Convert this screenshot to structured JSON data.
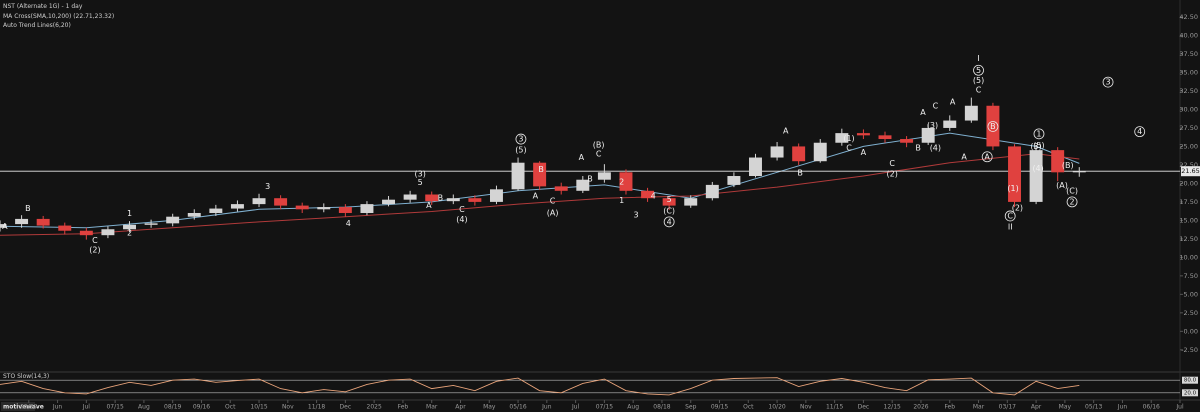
{
  "chart_data": {
    "type": "candlestick",
    "title": "NST (Alternate 1G) - 1 day",
    "indicators": [
      "MA Cross(SMA,10,200) (22.71,23.32)",
      "Auto Trend Lines(6,20)"
    ],
    "watermark": "motivewave",
    "up_color": "#d4d4d4",
    "down_color": "#e0413f",
    "x": [
      -1,
      -0.25,
      0.5,
      1.25,
      2,
      2.75,
      3.5,
      4.25,
      5,
      5.75,
      6.5,
      7.25,
      8,
      8.75,
      9.5,
      10.25,
      11,
      11.75,
      12.5,
      13.25,
      14,
      14.75,
      15.5,
      16.25,
      17,
      17.75,
      18.5,
      19.25,
      20,
      20.75,
      21.5,
      22.25,
      23,
      23.75,
      24.5,
      25.25,
      26,
      26.75,
      27.5,
      28.25,
      29,
      29.75,
      30.5,
      31.25,
      32,
      32.75,
      33.5,
      34.25,
      35,
      35.75,
      36.5
    ],
    "open": [
      14.0,
      14.5,
      15.2,
      14.3,
      13.6,
      13.0,
      13.8,
      14.4,
      14.6,
      15.5,
      16.0,
      16.6,
      17.2,
      18.0,
      17.0,
      16.5,
      16.8,
      16.0,
      17.2,
      17.8,
      18.5,
      17.6,
      18.0,
      17.5,
      19.2,
      22.8,
      19.6,
      19.0,
      20.5,
      21.5,
      19.0,
      18.0,
      17.0,
      18.0,
      19.8,
      21.0,
      23.5,
      25.0,
      23.0,
      25.5,
      26.8,
      26.5,
      26.0,
      25.5,
      27.5,
      28.5,
      30.5,
      25.0,
      17.5,
      24.5,
      21.5
    ],
    "high": [
      15.0,
      15.7,
      15.6,
      14.7,
      14.0,
      14.2,
      14.9,
      15.1,
      15.9,
      16.5,
      17.1,
      17.7,
      18.6,
      18.4,
      17.4,
      17.3,
      17.2,
      17.6,
      18.3,
      19.0,
      18.9,
      18.5,
      18.4,
      19.7,
      23.5,
      23.0,
      20.1,
      21.0,
      22.6,
      21.9,
      19.4,
      18.3,
      18.4,
      20.2,
      21.5,
      24.0,
      25.6,
      25.4,
      26.0,
      27.4,
      27.3,
      27.0,
      26.4,
      28.0,
      29.2,
      31.6,
      30.9,
      25.3,
      25.2,
      24.9,
      22.2
    ],
    "low": [
      13.5,
      14.0,
      13.9,
      13.1,
      12.4,
      12.6,
      13.4,
      14.0,
      14.2,
      15.1,
      15.6,
      16.2,
      16.8,
      16.5,
      16.0,
      16.1,
      15.5,
      15.7,
      16.9,
      17.4,
      17.1,
      17.2,
      17.0,
      17.2,
      19.0,
      19.1,
      18.5,
      18.7,
      20.1,
      18.5,
      17.5,
      16.4,
      16.7,
      17.7,
      19.5,
      20.8,
      23.1,
      22.5,
      22.8,
      25.1,
      26.0,
      25.5,
      24.9,
      25.2,
      27.1,
      28.2,
      24.5,
      16.8,
      17.2,
      20.3,
      20.9
    ],
    "close": [
      14.5,
      15.2,
      14.3,
      13.6,
      13.0,
      13.8,
      14.4,
      14.6,
      15.5,
      16.0,
      16.6,
      17.2,
      18.0,
      17.0,
      16.5,
      16.8,
      16.0,
      17.2,
      17.8,
      18.5,
      17.6,
      18.0,
      17.5,
      19.2,
      22.8,
      19.6,
      19.0,
      20.5,
      21.5,
      19.0,
      18.0,
      17.0,
      18.0,
      19.8,
      21.0,
      23.5,
      25.0,
      23.0,
      25.5,
      26.8,
      26.5,
      26.0,
      25.5,
      27.5,
      28.5,
      30.5,
      25.0,
      17.5,
      24.5,
      21.5,
      21.65
    ],
    "ma_lines": [
      {
        "color": "#7fb0d0",
        "x": [
          -1,
          2,
          5,
          8,
          11,
          14,
          17,
          20,
          23,
          26,
          29,
          32,
          35,
          36.5
        ],
        "values": [
          14.2,
          14.0,
          15.0,
          16.5,
          16.8,
          17.5,
          19.0,
          19.8,
          18.0,
          21.5,
          25.0,
          26.8,
          25.0,
          22.7
        ]
      },
      {
        "color": "#b03a3a",
        "x": [
          -1,
          2,
          5,
          8,
          11,
          14,
          17,
          20,
          23,
          26,
          29,
          32,
          35,
          36.5
        ],
        "values": [
          13.0,
          13.2,
          14.0,
          14.8,
          15.5,
          16.2,
          17.2,
          18.0,
          18.3,
          19.5,
          21.0,
          22.8,
          24.0,
          23.3
        ]
      }
    ],
    "last_price": 21.65,
    "xlim": [
      -1,
      40
    ],
    "xticks": [
      {
        "value": 0,
        "label": "05/20"
      },
      {
        "value": 1,
        "label": "Jun"
      },
      {
        "value": 2,
        "label": "Jul"
      },
      {
        "value": 3,
        "label": "07/15"
      },
      {
        "value": 4,
        "label": "Aug"
      },
      {
        "value": 5,
        "label": "08/19"
      },
      {
        "value": 6,
        "label": "09/16"
      },
      {
        "value": 7,
        "label": "Oct"
      },
      {
        "value": 8,
        "label": "10/15"
      },
      {
        "value": 9,
        "label": "Nov"
      },
      {
        "value": 10,
        "label": "11/18"
      },
      {
        "value": 11,
        "label": "Dec"
      },
      {
        "value": 12,
        "label": "2025"
      },
      {
        "value": 13,
        "label": "Feb"
      },
      {
        "value": 14,
        "label": "Mar"
      },
      {
        "value": 15,
        "label": "Apr"
      },
      {
        "value": 16,
        "label": "May"
      },
      {
        "value": 17,
        "label": "05/16"
      },
      {
        "value": 18,
        "label": "Jun"
      },
      {
        "value": 19,
        "label": "Jul"
      },
      {
        "value": 20,
        "label": "07/15"
      },
      {
        "value": 21,
        "label": "Aug"
      },
      {
        "value": 22,
        "label": "08/18"
      },
      {
        "value": 23,
        "label": "Sep"
      },
      {
        "value": 24,
        "label": "09/15"
      },
      {
        "value": 25,
        "label": "Oct"
      },
      {
        "value": 26,
        "label": "10/20"
      },
      {
        "value": 27,
        "label": "Nov"
      },
      {
        "value": 28,
        "label": "11/15"
      },
      {
        "value": 29,
        "label": "Dec"
      },
      {
        "value": 30,
        "label": "12/15"
      },
      {
        "value": 31,
        "label": "2026"
      },
      {
        "value": 32,
        "label": "Feb"
      },
      {
        "value": 33,
        "label": "Mar"
      },
      {
        "value": 34,
        "label": "03/17"
      },
      {
        "value": 35,
        "label": "Apr"
      },
      {
        "value": 36,
        "label": "May"
      },
      {
        "value": 37,
        "label": "05/13"
      },
      {
        "value": 38,
        "label": "Jun"
      },
      {
        "value": 39,
        "label": "06/16"
      },
      {
        "value": 40,
        "label": "Jul"
      }
    ],
    "ylim": [
      -5.5,
      44.8
    ],
    "yticks": [
      {
        "value": 42.5,
        "label": "42.50"
      },
      {
        "value": 40,
        "label": "40.00"
      },
      {
        "value": 37.5,
        "label": "37.50"
      },
      {
        "value": 35,
        "label": "35.00"
      },
      {
        "value": 32.5,
        "label": "32.50"
      },
      {
        "value": 30,
        "label": "30.00"
      },
      {
        "value": 27.5,
        "label": "27.50"
      },
      {
        "value": 25,
        "label": "25.00"
      },
      {
        "value": 22.5,
        "label": "22.50"
      },
      {
        "value": 20,
        "label": "20.00"
      },
      {
        "value": 17.5,
        "label": "17.50"
      },
      {
        "value": 15,
        "label": "15.00"
      },
      {
        "value": 12.5,
        "label": "12.50"
      },
      {
        "value": 10,
        "label": "10.00"
      },
      {
        "value": 7.5,
        "label": "7.50"
      },
      {
        "value": 5,
        "label": "5.00"
      },
      {
        "value": 2.5,
        "label": "2.50"
      },
      {
        "value": 0,
        "label": "0.00"
      },
      {
        "value": -2.5,
        "label": "-2.50"
      }
    ],
    "annotations": [
      {
        "text": "A",
        "x": -0.83,
        "y": 14.2
      },
      {
        "text": "B",
        "x": -0.03,
        "y": 16.6
      },
      {
        "text": "C",
        "x": 2.3,
        "y": 12.3
      },
      {
        "text": "(2)",
        "x": 2.3,
        "y": 11.0
      },
      {
        "text": "1",
        "x": 3.5,
        "y": 15.9
      },
      {
        "text": "2",
        "x": 3.5,
        "y": 13.3
      },
      {
        "text": "3",
        "x": 8.3,
        "y": 19.6
      },
      {
        "text": "4",
        "x": 11.1,
        "y": 14.6
      },
      {
        "text": "(3)",
        "x": 13.6,
        "y": 21.3
      },
      {
        "text": "5",
        "x": 13.6,
        "y": 20.1
      },
      {
        "text": "A",
        "x": 13.9,
        "y": 17.0
      },
      {
        "text": "B",
        "x": 14.3,
        "y": 18.0
      },
      {
        "text": "C",
        "x": 15.05,
        "y": 16.5
      },
      {
        "text": "(4)",
        "x": 15.05,
        "y": 15.1
      },
      {
        "text": "3",
        "x": 17.1,
        "y": 26.0,
        "circled": true
      },
      {
        "text": "(5)",
        "x": 17.1,
        "y": 24.5
      },
      {
        "text": "A",
        "x": 17.6,
        "y": 18.3
      },
      {
        "text": "B",
        "x": 17.8,
        "y": 21.9
      },
      {
        "text": "C",
        "x": 18.2,
        "y": 17.6
      },
      {
        "text": "(A)",
        "x": 18.2,
        "y": 16.0
      },
      {
        "text": "A",
        "x": 19.2,
        "y": 23.5
      },
      {
        "text": "(B)",
        "x": 19.8,
        "y": 25.2
      },
      {
        "text": "C",
        "x": 19.8,
        "y": 24.0
      },
      {
        "text": "B",
        "x": 19.5,
        "y": 20.6
      },
      {
        "text": "2",
        "x": 20.6,
        "y": 20.2
      },
      {
        "text": "1",
        "x": 20.6,
        "y": 17.7
      },
      {
        "text": "3",
        "x": 21.1,
        "y": 15.7
      },
      {
        "text": "4",
        "x": 21.7,
        "y": 18.3
      },
      {
        "text": "5",
        "x": 22.25,
        "y": 17.8
      },
      {
        "text": "(C)",
        "x": 22.25,
        "y": 16.3
      },
      {
        "text": "4",
        "x": 22.25,
        "y": 14.8,
        "circled": true
      },
      {
        "text": "A",
        "x": 26.3,
        "y": 27.1
      },
      {
        "text": "B",
        "x": 26.8,
        "y": 21.4
      },
      {
        "text": "(1)",
        "x": 28.5,
        "y": 26.1
      },
      {
        "text": "C",
        "x": 28.5,
        "y": 24.8
      },
      {
        "text": "A",
        "x": 29.0,
        "y": 24.2
      },
      {
        "text": "C",
        "x": 30.0,
        "y": 22.7
      },
      {
        "text": "(2)",
        "x": 30.0,
        "y": 21.3
      },
      {
        "text": "B",
        "x": 30.9,
        "y": 24.8
      },
      {
        "text": "(4)",
        "x": 31.5,
        "y": 24.8
      },
      {
        "text": "A",
        "x": 31.07,
        "y": 29.6
      },
      {
        "text": "(3)",
        "x": 31.4,
        "y": 27.8
      },
      {
        "text": "C",
        "x": 31.5,
        "y": 30.5
      },
      {
        "text": "A",
        "x": 32.1,
        "y": 31.0
      },
      {
        "text": "I",
        "x": 33.0,
        "y": 36.9
      },
      {
        "text": "5",
        "x": 33.0,
        "y": 35.3,
        "circled": true
      },
      {
        "text": "(5)",
        "x": 33.0,
        "y": 33.9
      },
      {
        "text": "C",
        "x": 33.0,
        "y": 32.6
      },
      {
        "text": "A",
        "x": 32.5,
        "y": 23.6
      },
      {
        "text": "B",
        "x": 33.5,
        "y": 27.7,
        "circled": true
      },
      {
        "text": "A",
        "x": 33.3,
        "y": 23.6,
        "circled": true
      },
      {
        "text": "(1)",
        "x": 34.2,
        "y": 19.3
      },
      {
        "text": "(2)",
        "x": 34.35,
        "y": 16.7
      },
      {
        "text": "C",
        "x": 34.1,
        "y": 15.6,
        "circled": true
      },
      {
        "text": "II",
        "x": 34.1,
        "y": 14.1
      },
      {
        "text": "(3)",
        "x": 35.0,
        "y": 25.0
      },
      {
        "text": "1",
        "x": 35.1,
        "y": 26.7,
        "circled": true
      },
      {
        "text": "(5)",
        "x": 35.1,
        "y": 25.1
      },
      {
        "text": "(4)",
        "x": 35.07,
        "y": 22.0
      },
      {
        "text": "(B)",
        "x": 36.1,
        "y": 22.4
      },
      {
        "text": "(A)",
        "x": 35.9,
        "y": 19.7
      },
      {
        "text": "(C)",
        "x": 36.25,
        "y": 19.0
      },
      {
        "text": "2",
        "x": 36.25,
        "y": 17.5,
        "circled": true
      },
      {
        "text": "3",
        "x": 37.5,
        "y": 33.7,
        "circled": true
      },
      {
        "text": "4",
        "x": 38.6,
        "y": 27.0,
        "circled": true
      }
    ],
    "oscillator": {
      "title": "STO Slow(14,3)",
      "color": "#e8a37a",
      "values": [
        60,
        75,
        40,
        20,
        15,
        45,
        70,
        55,
        80,
        85,
        70,
        78,
        85,
        40,
        20,
        35,
        25,
        60,
        80,
        85,
        40,
        55,
        30,
        75,
        90,
        30,
        20,
        65,
        85,
        30,
        15,
        10,
        40,
        80,
        88,
        90,
        92,
        50,
        75,
        88,
        70,
        45,
        30,
        82,
        85,
        90,
        20,
        10,
        75,
        40,
        55
      ],
      "ylim": [
        0,
        100
      ],
      "yticks": [
        {
          "value": 80,
          "label": "80.0"
        },
        {
          "value": 20,
          "label": "20.0"
        }
      ]
    }
  }
}
